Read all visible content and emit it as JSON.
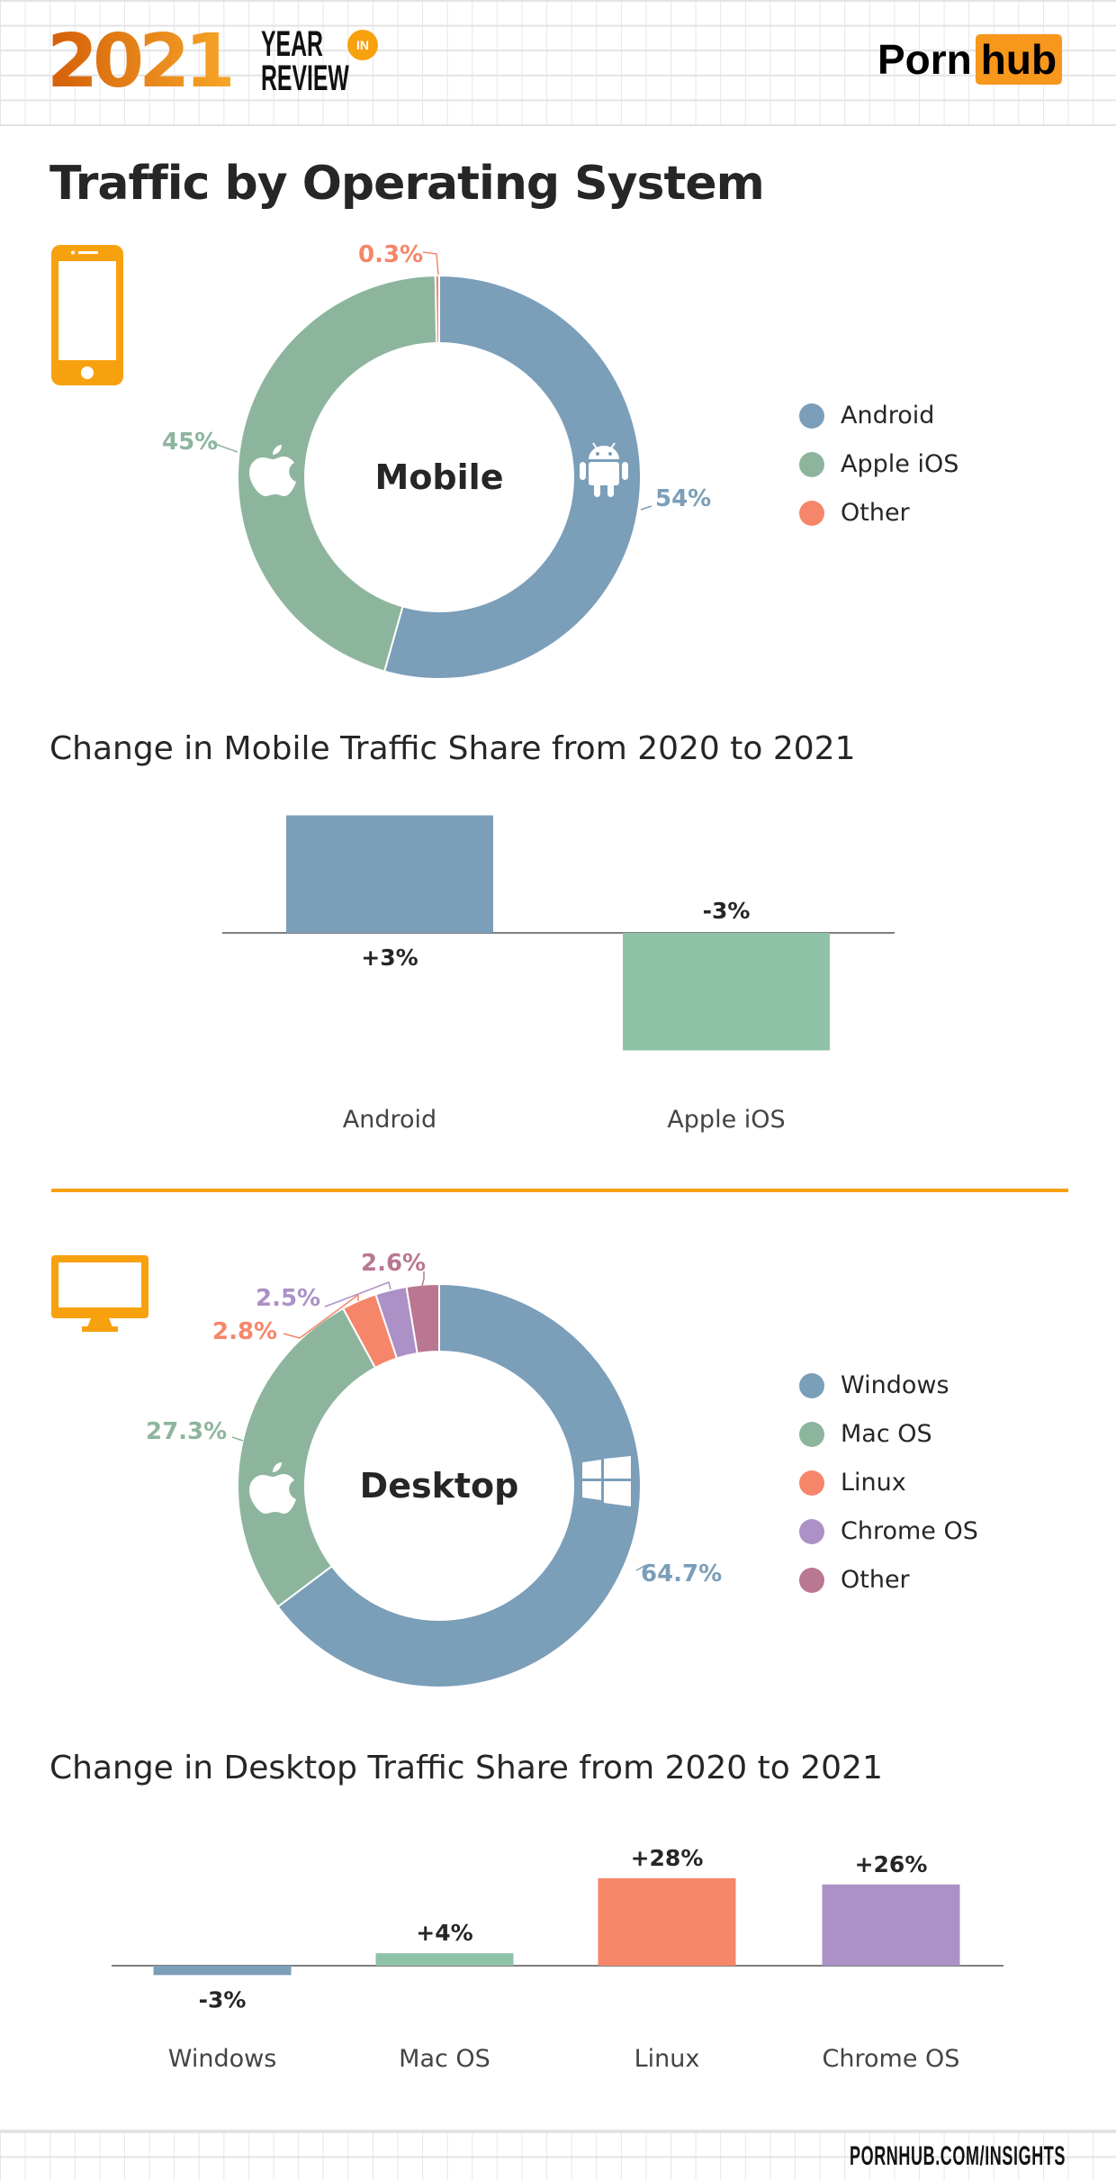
{
  "header": {
    "logo_year": "2021",
    "logo_line1": "YEAR",
    "logo_badge": "IN",
    "logo_line2": "REVIEW",
    "brand_part1": "Porn",
    "brand_part2": "hub"
  },
  "title": "Traffic by Operating System",
  "footer": "PORNHUB.COM/INSIGHTS",
  "colors": {
    "accent": "#f7a10f",
    "blue": "#7b9eb9",
    "green": "#8db59d",
    "green_bar": "#8fc3a7",
    "orange": "#f6866a",
    "purple": "#ab91c6",
    "mauve": "#b97792"
  },
  "chart_data": [
    {
      "type": "pie",
      "center_label": "Mobile",
      "icon": "smartphone-icon",
      "slices": [
        {
          "label": "Android",
          "value": 54,
          "display": "54%",
          "color": "#7b9eb9",
          "icon": "android-icon"
        },
        {
          "label": "Apple iOS",
          "value": 45,
          "display": "45%",
          "color": "#8db59d",
          "icon": "apple-icon"
        },
        {
          "label": "Other",
          "value": 0.3,
          "display": "0.3%",
          "color": "#f6866a"
        }
      ],
      "legend_placement": "right"
    },
    {
      "type": "bar",
      "title": "Change in Mobile Traffic Share from 2020 to 2021",
      "categories": [
        "Android",
        "Apple iOS"
      ],
      "values": [
        3,
        -3
      ],
      "labels": [
        "+3%",
        "-3%"
      ],
      "colors": [
        "#7b9eb9",
        "#8fc3a7"
      ],
      "unit": "%"
    },
    {
      "type": "pie",
      "center_label": "Desktop",
      "icon": "desktop-monitor-icon",
      "slices": [
        {
          "label": "Windows",
          "value": 64.7,
          "display": "64.7%",
          "color": "#7b9eb9",
          "icon": "windows-icon"
        },
        {
          "label": "Mac OS",
          "value": 27.3,
          "display": "27.3%",
          "color": "#8db59d",
          "icon": "apple-icon"
        },
        {
          "label": "Linux",
          "value": 2.8,
          "display": "2.8%",
          "color": "#f6866a"
        },
        {
          "label": "Chrome OS",
          "value": 2.5,
          "display": "2.5%",
          "color": "#ab91c6"
        },
        {
          "label": "Other",
          "value": 2.6,
          "display": "2.6%",
          "color": "#b97792"
        }
      ],
      "legend_placement": "right"
    },
    {
      "type": "bar",
      "title": "Change in Desktop Traffic Share from 2020 to 2021",
      "categories": [
        "Windows",
        "Mac OS",
        "Linux",
        "Chrome OS"
      ],
      "values": [
        -3,
        4,
        28,
        26
      ],
      "labels": [
        "-3%",
        "+4%",
        "+28%",
        "+26%"
      ],
      "colors": [
        "#7b9eb9",
        "#8fc3a7",
        "#f6866a",
        "#ab91c6"
      ],
      "unit": "%"
    }
  ]
}
